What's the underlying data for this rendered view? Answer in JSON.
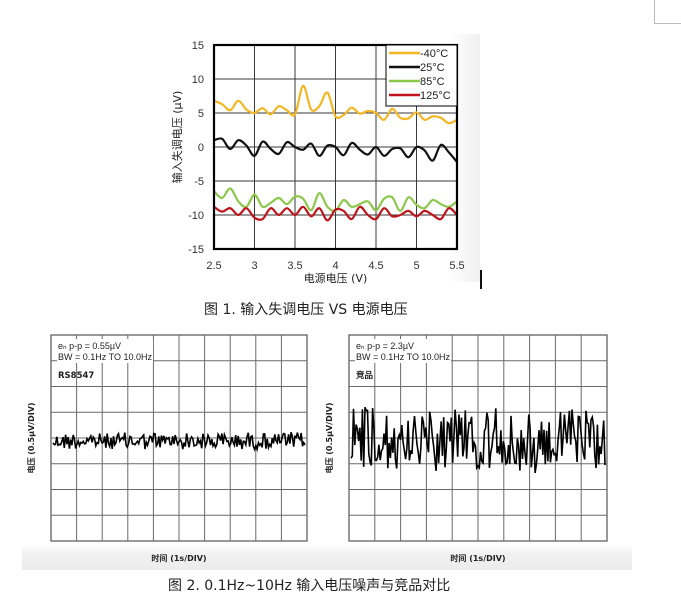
{
  "figure1": {
    "caption": "图 1. 输入失调电压 VS 电源电压",
    "xlabel": "电源电压 (V)",
    "ylabel": "输入失调电压 (µV)",
    "xticks": [
      "2.5",
      "3",
      "3.5",
      "4",
      "4.5",
      "5",
      "5.5"
    ],
    "yticks": [
      "15",
      "10",
      "5",
      "0",
      "-5",
      "-10",
      "-15"
    ],
    "legend": [
      {
        "label": "-40°C",
        "color": "#F5B624"
      },
      {
        "label": "25°C",
        "color": "#111111"
      },
      {
        "label": "85°C",
        "color": "#8CC84B"
      },
      {
        "label": "125°C",
        "color": "#C0141C"
      }
    ]
  },
  "figure2": {
    "caption": "图 2. 0.1Hz~10Hz 输入电压噪声与竞品对比",
    "left": {
      "line1": "eₙ p-p = 0.55µV",
      "line2": "BW = 0.1Hz TO 10.0Hz",
      "device": "RS8547",
      "xlabel": "时间 (1s/DIV)",
      "ylabel": "电压 (0.5µV/DIV)"
    },
    "right": {
      "line1": "eₙ p-p = 2.3µV",
      "line2": "BW = 0.1Hz TO 10.0Hz",
      "device": "竞品",
      "xlabel": "时间 (1s/DIV)",
      "ylabel": "电压 (0.5µV/DIV)"
    }
  },
  "chart_data": [
    {
      "type": "line",
      "title": "图 1. 输入失调电压 VS 电源电压",
      "xlabel": "电源电压 (V)",
      "ylabel": "输入失调电压 (µV)",
      "xlim": [
        2.5,
        5.5
      ],
      "ylim": [
        -15,
        15
      ],
      "xticks": [
        2.5,
        3,
        3.5,
        4,
        4.5,
        5,
        5.5
      ],
      "yticks": [
        -15,
        -10,
        -5,
        0,
        5,
        10,
        15
      ],
      "grid": true,
      "legend_position": "top-right inside",
      "x": [
        2.5,
        2.6,
        2.7,
        2.8,
        2.9,
        3.0,
        3.1,
        3.2,
        3.3,
        3.4,
        3.5,
        3.6,
        3.7,
        3.8,
        3.9,
        4.0,
        4.1,
        4.2,
        4.3,
        4.4,
        4.5,
        4.6,
        4.7,
        4.8,
        4.9,
        5.0,
        5.1,
        5.2,
        5.3,
        5.4,
        5.5
      ],
      "series": [
        {
          "name": "-40°C",
          "color": "#F5B624",
          "values": [
            6.8,
            6.3,
            5.4,
            6.8,
            5.5,
            5.0,
            5.7,
            4.8,
            6.0,
            5.4,
            4.8,
            9.0,
            5.5,
            6.0,
            8.0,
            4.5,
            4.7,
            5.8,
            4.9,
            5.3,
            5.0,
            4.0,
            5.6,
            4.3,
            4.2,
            5.1,
            4.0,
            4.5,
            4.3,
            3.5,
            4.0
          ]
        },
        {
          "name": "25°C",
          "color": "#111111",
          "values": [
            1.0,
            1.2,
            -0.3,
            1.0,
            0.2,
            -1.3,
            0.8,
            -0.3,
            -1.0,
            0.7,
            0.0,
            -0.4,
            0.5,
            -1.3,
            0.2,
            0.0,
            -1.2,
            0.6,
            -0.4,
            -1.1,
            0.0,
            -1.3,
            -0.3,
            -0.2,
            -1.5,
            0.0,
            -0.5,
            -2.0,
            0.3,
            -0.8,
            -2.2
          ]
        },
        {
          "name": "85°C",
          "color": "#8CC84B",
          "values": [
            -6.5,
            -7.5,
            -6.1,
            -8.0,
            -8.8,
            -7.0,
            -8.8,
            -8.2,
            -7.5,
            -8.4,
            -7.3,
            -7.6,
            -9.3,
            -6.8,
            -8.8,
            -9.4,
            -7.8,
            -8.8,
            -8.4,
            -8.0,
            -9.3,
            -7.6,
            -7.4,
            -9.4,
            -7.4,
            -8.5,
            -9.0,
            -7.8,
            -8.4,
            -8.8,
            -8.0
          ]
        },
        {
          "name": "125°C",
          "color": "#C0141C",
          "values": [
            -8.8,
            -9.5,
            -9.0,
            -10.0,
            -9.0,
            -10.4,
            -10.6,
            -9.0,
            -10.0,
            -9.0,
            -10.0,
            -8.8,
            -10.2,
            -9.0,
            -10.8,
            -9.2,
            -9.4,
            -10.6,
            -8.8,
            -10.0,
            -10.6,
            -9.0,
            -10.2,
            -10.0,
            -9.4,
            -10.2,
            -9.4,
            -10.0,
            -10.6,
            -9.0,
            -10.0
          ]
        }
      ]
    },
    {
      "type": "line",
      "title": "RS8547",
      "annotation": [
        "eₙ p-p = 0.55µV",
        "BW = 0.1Hz TO 10.0Hz"
      ],
      "xlabel": "时间 (1s/DIV)",
      "ylabel": "电压 (0.5µV/DIV)",
      "x_divisions": 10,
      "y_divisions": 8,
      "grid": true,
      "xlim": [
        0,
        10
      ],
      "ylim": [
        -2.0,
        2.0
      ],
      "peak_to_peak_uV": 0.55,
      "series": [
        {
          "name": "RS8547",
          "values_description": "noise trace centered ~0.0µV, amplitude about ±0.28µV"
        }
      ]
    },
    {
      "type": "line",
      "title": "竞品",
      "annotation": [
        "eₙ p-p = 2.3µV",
        "BW = 0.1Hz TO 10.0Hz"
      ],
      "xlabel": "时间 (1s/DIV)",
      "ylabel": "电压 (0.5µV/DIV)",
      "x_divisions": 10,
      "y_divisions": 8,
      "grid": true,
      "xlim": [
        0,
        10
      ],
      "ylim": [
        -2.0,
        2.0
      ],
      "peak_to_peak_uV": 2.3,
      "series": [
        {
          "name": "竞品",
          "values_description": "noise trace centered ~0.0µV, amplitude about ±1.15µV"
        }
      ]
    }
  ]
}
